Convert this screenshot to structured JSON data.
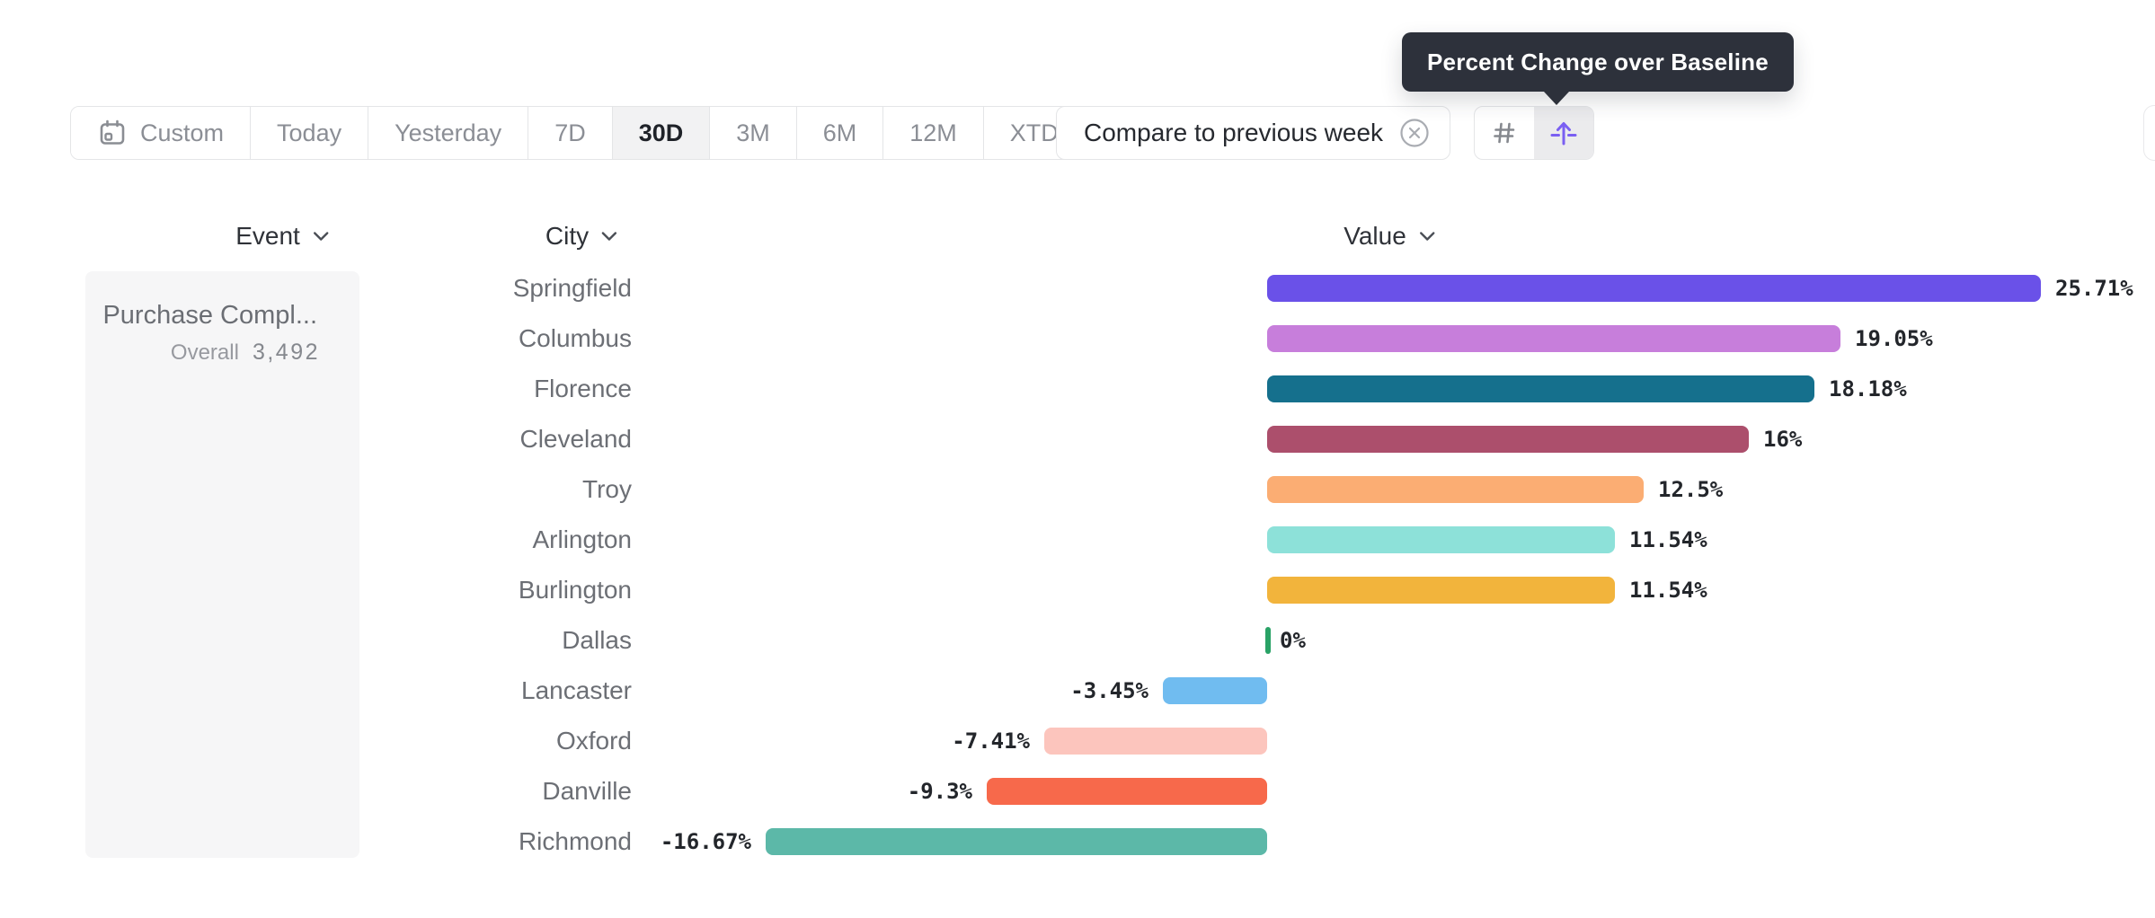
{
  "tooltip": {
    "text": "Percent Change over Baseline"
  },
  "toolbar": {
    "date_ranges": [
      {
        "label": "Custom",
        "icon": "calendar",
        "selected": false
      },
      {
        "label": "Today",
        "selected": false
      },
      {
        "label": "Yesterday",
        "selected": false
      },
      {
        "label": "7D",
        "selected": false
      },
      {
        "label": "30D",
        "selected": true
      },
      {
        "label": "3M",
        "selected": false
      },
      {
        "label": "6M",
        "selected": false
      },
      {
        "label": "12M",
        "selected": false
      },
      {
        "label": "XTD",
        "chevron": true,
        "selected": false
      }
    ],
    "compare_label": "Compare to previous week",
    "view_toggles": [
      {
        "name": "number-grid",
        "selected": false
      },
      {
        "name": "percent-change-baseline",
        "selected": true
      }
    ]
  },
  "columns": [
    {
      "label": "Event"
    },
    {
      "label": "City"
    },
    {
      "label": "Value"
    }
  ],
  "event_panel": {
    "event_name": "Purchase Compl...",
    "overall_label": "Overall",
    "overall_value": "3,492"
  },
  "chart_data": {
    "type": "bar",
    "orientation": "horizontal",
    "metric": "Percent Change over Baseline",
    "unit": "%",
    "baseline": 0,
    "grid": false,
    "legend": false,
    "xlim": [
      -16.67,
      25.71
    ],
    "categories": [
      "Springfield",
      "Columbus",
      "Florence",
      "Cleveland",
      "Troy",
      "Arlington",
      "Burlington",
      "Dallas",
      "Lancaster",
      "Oxford",
      "Danville",
      "Richmond"
    ],
    "values": [
      25.71,
      19.05,
      18.18,
      16,
      12.5,
      11.54,
      11.54,
      0,
      -3.45,
      -7.41,
      -9.3,
      -16.67
    ],
    "value_labels": [
      "25.71%",
      "19.05%",
      "18.18%",
      "16%",
      "12.5%",
      "11.54%",
      "11.54%",
      "0%",
      "-3.45%",
      "-7.41%",
      "-9.3%",
      "-16.67%"
    ],
    "bar_colors": [
      "#6a51e8",
      "#c77edb",
      "#15708d",
      "#ac4f6c",
      "#fbad73",
      "#8de1d9",
      "#f2b43c",
      "#29a266",
      "#70bcf0",
      "#fcc5bd",
      "#f7694b",
      "#5cb8a8"
    ],
    "colors": {
      "value_label_text": "#23262b",
      "city_label_text": "#6c6f75",
      "accent_purple": "#7a5ff2"
    }
  }
}
